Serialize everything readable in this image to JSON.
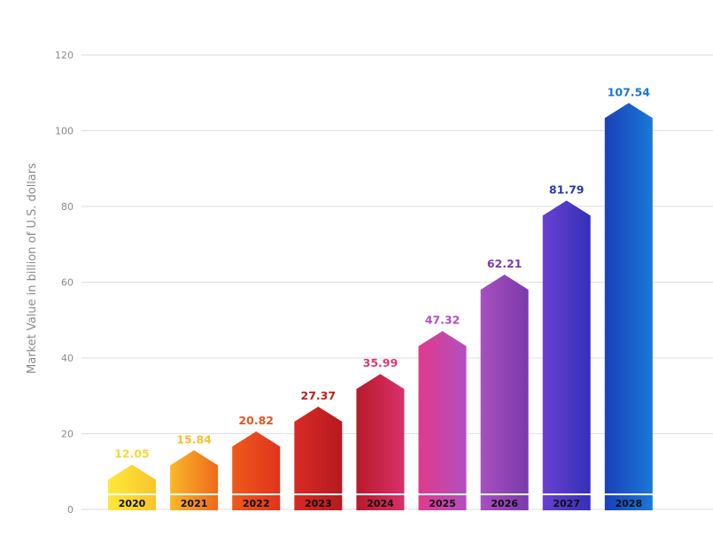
{
  "chart_data": {
    "type": "bar",
    "title": "",
    "xlabel": "",
    "ylabel": "Market Value in billion of U.S. dollars",
    "ylim": [
      0,
      120
    ],
    "yticks": [
      0,
      20,
      40,
      60,
      80,
      100,
      120
    ],
    "grid": true,
    "categories": [
      "2020",
      "2021",
      "2022",
      "2023",
      "2024",
      "2025",
      "2026",
      "2027",
      "2028"
    ],
    "values": [
      12.05,
      15.84,
      20.82,
      27.37,
      35.99,
      47.32,
      62.21,
      81.79,
      107.54
    ],
    "value_labels": [
      "12.05",
      "15.84",
      "20.82",
      "27.37",
      "35.99",
      "47.32",
      "62.21",
      "81.79",
      "107.54"
    ],
    "bar_colors": [
      [
        "#fde93a",
        "#f9c42c"
      ],
      [
        "#f9b82a",
        "#ee6a1a"
      ],
      [
        "#ee5a1a",
        "#e0341e"
      ],
      [
        "#d92a24",
        "#b51a20"
      ],
      [
        "#b81a2a",
        "#d8306a"
      ],
      [
        "#e03a8a",
        "#b050c0"
      ],
      [
        "#a850c0",
        "#7a3aaa"
      ],
      [
        "#6a40d0",
        "#3430b8"
      ],
      [
        "#1a40b8",
        "#1a78d8"
      ]
    ],
    "label_colors": [
      "#f5d63a",
      "#f5c030",
      "#e8541c",
      "#c0201e",
      "#d83a78",
      "#b050c0",
      "#7a3ab0",
      "#2a3aa8",
      "#1a78d0"
    ]
  }
}
